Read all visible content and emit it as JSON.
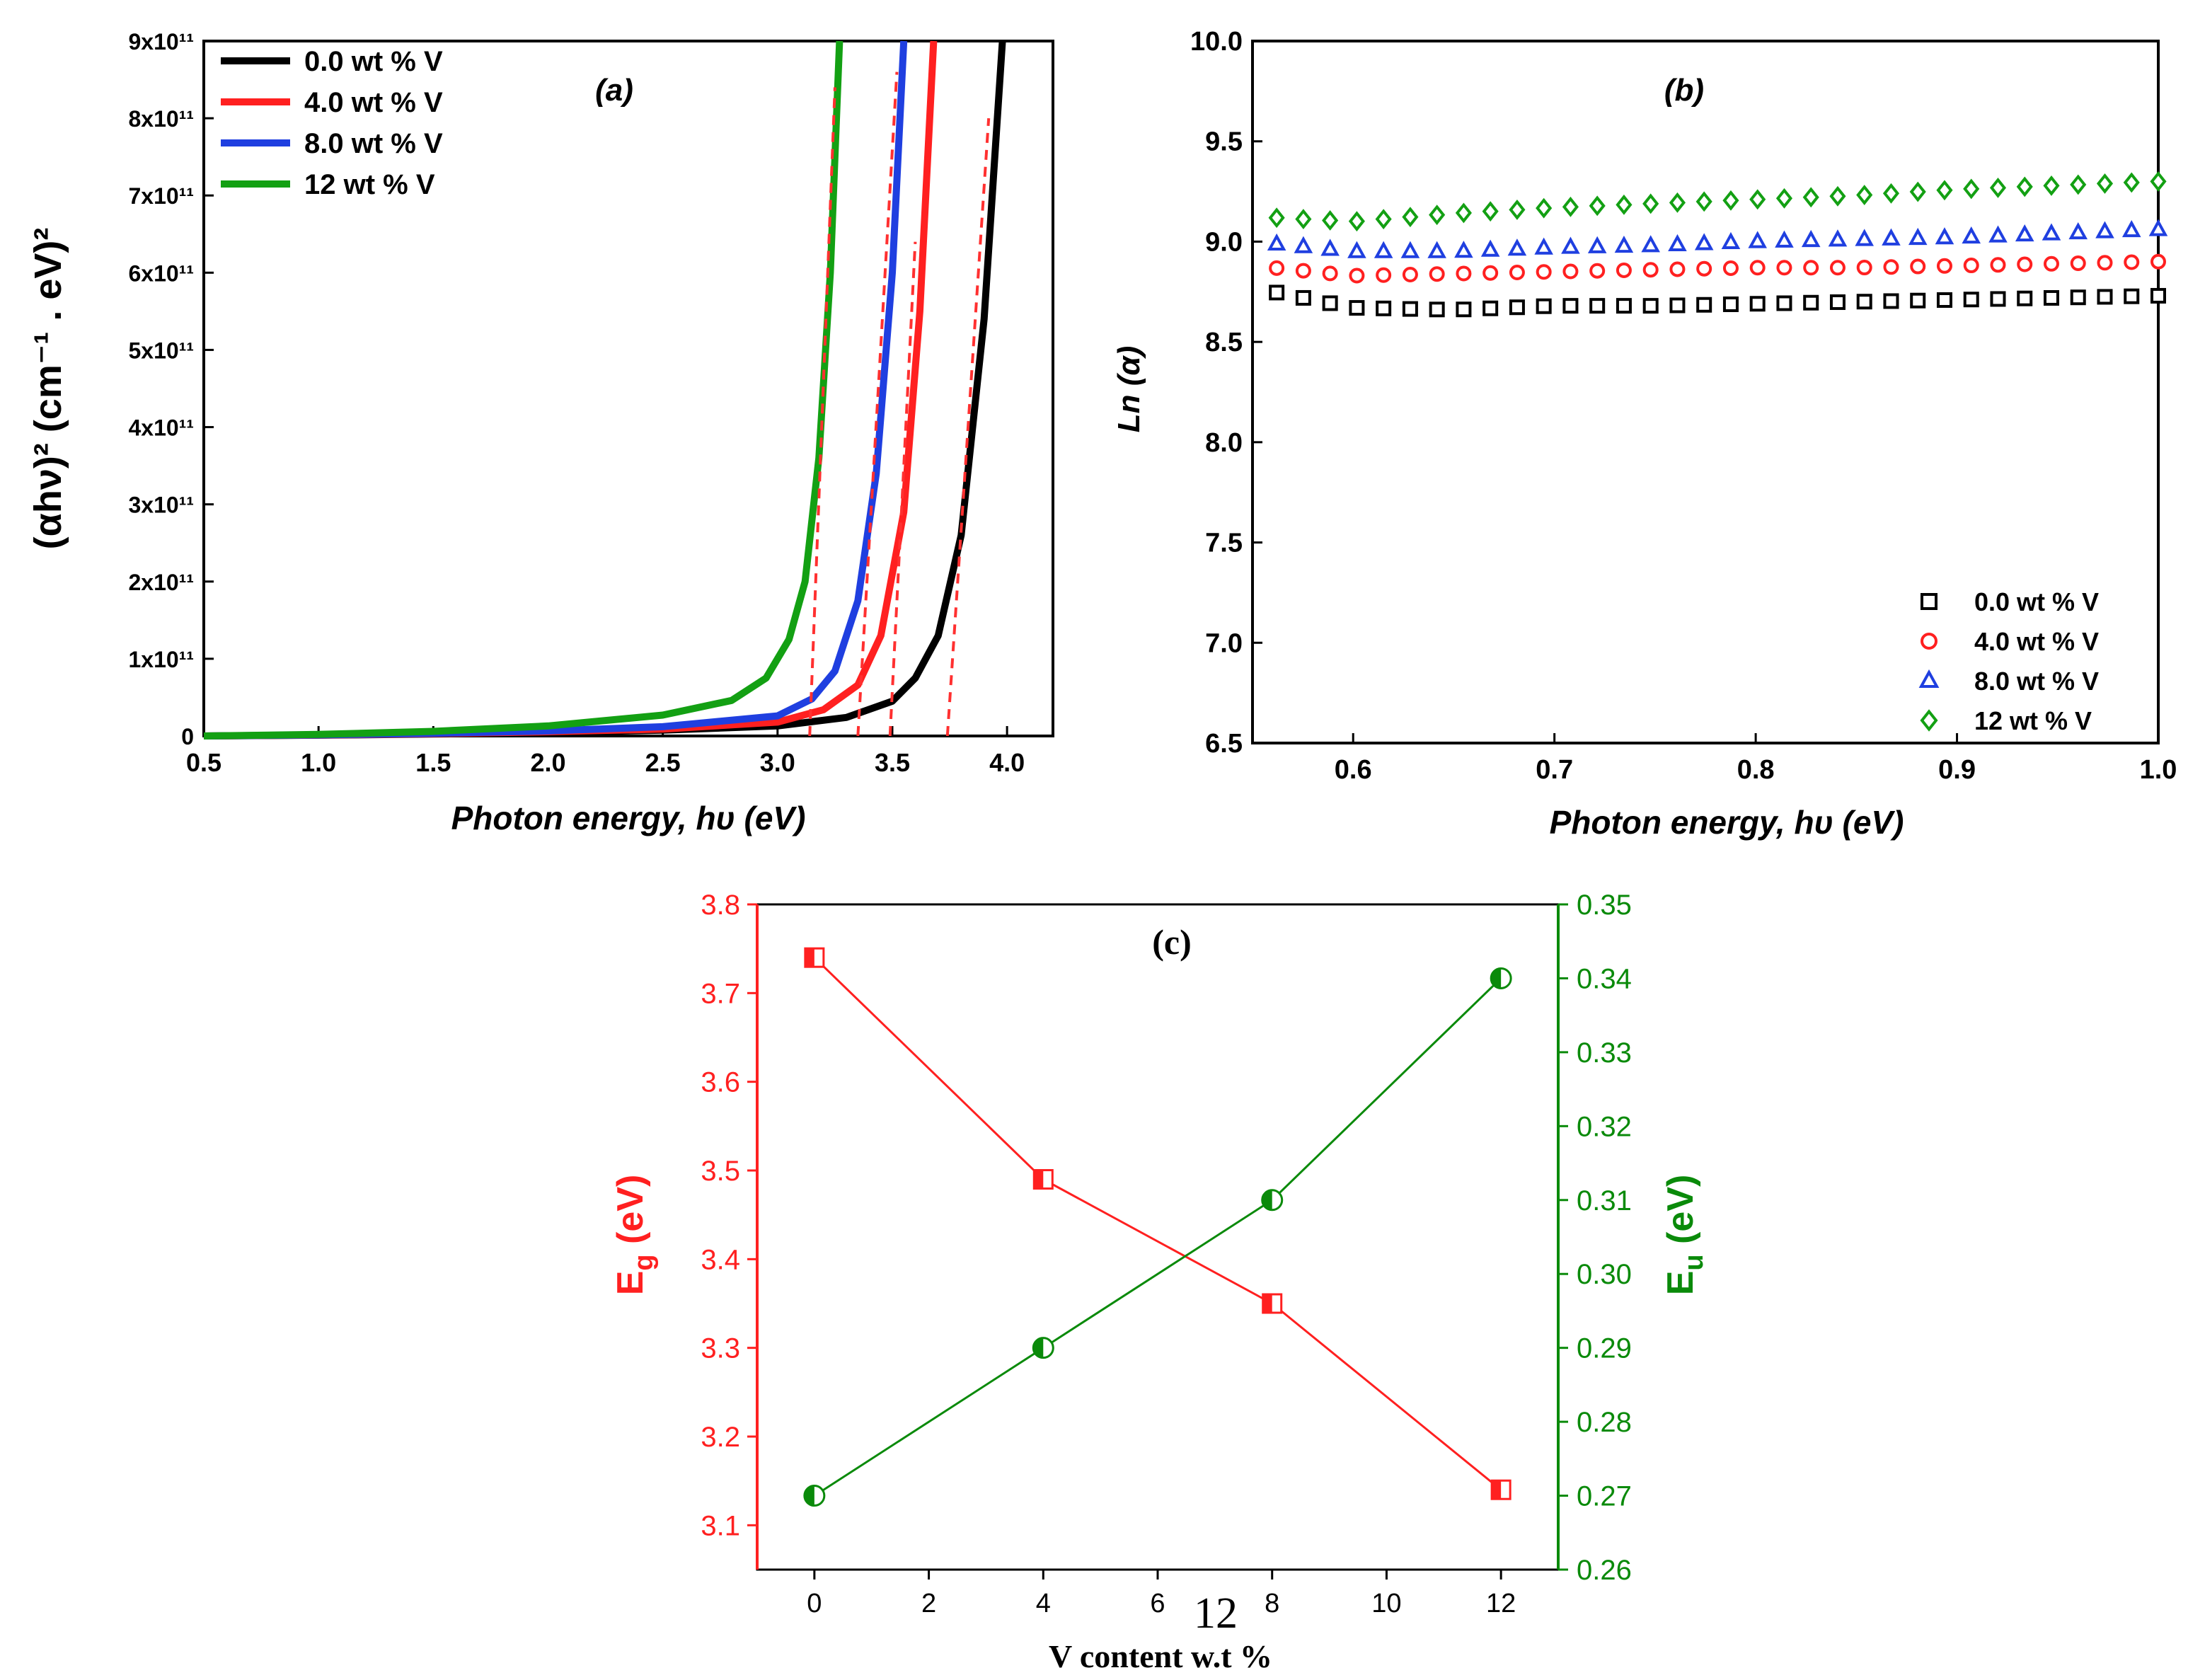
{
  "page_label": "12",
  "colors": {
    "black": "#000000",
    "red": "#ff2020",
    "blue": "#1f3fe0",
    "green": "#13a013",
    "dark_green": "#0a8a0a",
    "fit": "#ff3030"
  },
  "chart_data": [
    {
      "id": "a",
      "type": "line",
      "panel_label": "(a)",
      "xlabel": "Photon energy, hυ (eV)",
      "ylabel": "(αhν)² (cm⁻¹ . eV)²",
      "xlim": [
        0.5,
        4.2
      ],
      "ylim": [
        0,
        900000000000
      ],
      "xticks": [
        "0.5",
        "1.0",
        "1.5",
        "2.0",
        "2.5",
        "3.0",
        "3.5",
        "4.0"
      ],
      "yticks": [
        "0",
        "1x10¹¹",
        "2x10¹¹",
        "3x10¹¹",
        "4x10¹¹",
        "5x10¹¹",
        "6x10¹¹",
        "7x10¹¹",
        "8x10¹¹",
        "9x10¹¹"
      ],
      "legend_position": "top-left",
      "series": [
        {
          "name": "0.0 wt % V",
          "color": "#000000",
          "edge_eV": 3.74,
          "x": [
            0.5,
            1.0,
            1.5,
            2.0,
            2.5,
            3.0,
            3.3,
            3.5,
            3.6,
            3.7,
            3.8,
            3.9,
            3.98
          ],
          "y": [
            0,
            1000000000.0,
            2500000000.0,
            4500000000.0,
            7500000000.0,
            13000000000.0,
            24000000000.0,
            45000000000.0,
            75000000000.0,
            130000000000.0,
            260000000000.0,
            540000000000.0,
            900000000000.0
          ]
        },
        {
          "name": "4.0 wt % V",
          "color": "#ff2020",
          "edge_eV": 3.49,
          "x": [
            0.5,
            1.0,
            1.5,
            2.0,
            2.5,
            3.0,
            3.2,
            3.35,
            3.45,
            3.55,
            3.62,
            3.68
          ],
          "y": [
            0,
            1200000000.0,
            3000000000.0,
            5500000000.0,
            9000000000.0,
            18000000000.0,
            34000000000.0,
            66000000000.0,
            130000000000.0,
            290000000000.0,
            550000000000.0,
            900000000000.0
          ]
        },
        {
          "name": "8.0 wt % V",
          "color": "#1f3fe0",
          "edge_eV": 3.35,
          "x": [
            0.5,
            1.0,
            1.5,
            2.0,
            2.5,
            3.0,
            3.15,
            3.25,
            3.35,
            3.43,
            3.5,
            3.55
          ],
          "y": [
            0,
            1400000000.0,
            3500000000.0,
            6500000000.0,
            12000000000.0,
            26000000000.0,
            48000000000.0,
            84000000000.0,
            175000000000.0,
            340000000000.0,
            600000000000.0,
            900000000000.0
          ]
        },
        {
          "name": "12  wt % V",
          "color": "#13a013",
          "edge_eV": 3.14,
          "x": [
            0.5,
            1.0,
            1.5,
            2.0,
            2.5,
            2.8,
            2.95,
            3.05,
            3.12,
            3.18,
            3.23,
            3.27
          ],
          "y": [
            0,
            2000000000.0,
            6000000000.0,
            13000000000.0,
            27000000000.0,
            46000000000.0,
            75000000000.0,
            125000000000.0,
            200000000000.0,
            360000000000.0,
            600000000000.0,
            900000000000.0
          ]
        }
      ],
      "fit_lines": [
        {
          "series": "0.0 wt % V",
          "x": [
            3.74,
            3.92
          ],
          "y": [
            0,
            800000000000.0
          ]
        },
        {
          "series": "4.0 wt % V",
          "x": [
            3.49,
            3.6
          ],
          "y": [
            0,
            640000000000.0
          ]
        },
        {
          "series": "8.0 wt % V",
          "x": [
            3.35,
            3.52
          ],
          "y": [
            0,
            860000000000.0
          ]
        },
        {
          "series": "12  wt % V",
          "x": [
            3.14,
            3.25
          ],
          "y": [
            0,
            840000000000.0
          ]
        }
      ]
    },
    {
      "id": "b",
      "type": "scatter",
      "panel_label": "(b)",
      "xlabel": "Photon energy, hυ (eV)",
      "ylabel": "Ln (α)",
      "xlim": [
        0.55,
        1.0
      ],
      "ylim": [
        6.5,
        10.0
      ],
      "xticks": [
        "0.6",
        "0.7",
        "0.8",
        "0.9",
        "1.0"
      ],
      "yticks": [
        "6.5",
        "7.0",
        "7.5",
        "8.0",
        "8.5",
        "9.0",
        "9.5",
        "10.0"
      ],
      "legend_position": "bottom-right",
      "series": [
        {
          "name": "0.0 wt % V",
          "marker": "square",
          "color": "#000000",
          "x": [
            0.56,
            0.6,
            0.65,
            0.7,
            0.75,
            0.8,
            0.85,
            0.9,
            0.95,
            1.0
          ],
          "y": [
            8.75,
            8.67,
            8.66,
            8.68,
            8.68,
            8.69,
            8.7,
            8.71,
            8.72,
            8.73
          ]
        },
        {
          "name": "4.0 wt % V",
          "marker": "circle",
          "color": "#ff2020",
          "x": [
            0.56,
            0.6,
            0.65,
            0.7,
            0.75,
            0.8,
            0.85,
            0.9,
            0.95,
            1.0
          ],
          "y": [
            8.87,
            8.83,
            8.84,
            8.85,
            8.86,
            8.87,
            8.87,
            8.88,
            8.89,
            8.9
          ]
        },
        {
          "name": "8.0 wt % V",
          "marker": "triangle",
          "color": "#1f3fe0",
          "x": [
            0.56,
            0.6,
            0.65,
            0.7,
            0.75,
            0.8,
            0.85,
            0.9,
            0.95,
            1.0
          ],
          "y": [
            8.99,
            8.95,
            8.95,
            8.97,
            8.98,
            9.0,
            9.01,
            9.02,
            9.04,
            9.06
          ]
        },
        {
          "name": "12  wt % V",
          "marker": "diamond",
          "color": "#13a013",
          "x": [
            0.56,
            0.6,
            0.65,
            0.7,
            0.75,
            0.8,
            0.85,
            0.9,
            0.95,
            1.0
          ],
          "y": [
            9.12,
            9.1,
            9.14,
            9.17,
            9.19,
            9.21,
            9.23,
            9.26,
            9.28,
            9.3
          ]
        }
      ]
    },
    {
      "id": "c",
      "type": "line",
      "panel_label": "(c)",
      "xlabel": "V  content w.t %",
      "categories_label": "V content",
      "xlim": [
        -1,
        13
      ],
      "xticks": [
        "0",
        "2",
        "4",
        "6",
        "8",
        "10",
        "12"
      ],
      "y_left": {
        "label": "Eg (eV)",
        "label_main": "E",
        "label_sub": "g",
        "label_unit": " (eV)",
        "lim": [
          3.05,
          3.8
        ],
        "ticks": [
          "3.1",
          "3.2",
          "3.3",
          "3.4",
          "3.5",
          "3.6",
          "3.7",
          "3.8"
        ],
        "color": "#ff2020"
      },
      "y_right": {
        "label": "Eu (eV)",
        "label_main": "E",
        "label_sub": "u",
        "label_unit": " (eV)",
        "lim": [
          0.26,
          0.35
        ],
        "ticks": [
          "0.26",
          "0.27",
          "0.28",
          "0.29",
          "0.30",
          "0.31",
          "0.32",
          "0.33",
          "0.34",
          "0.35"
        ],
        "color": "#0a8a0a"
      },
      "series": [
        {
          "name": "Eg",
          "axis": "left",
          "marker": "half-filled square",
          "color": "#ff2020",
          "x": [
            0,
            4,
            8,
            12
          ],
          "y": [
            3.74,
            3.49,
            3.35,
            3.14
          ]
        },
        {
          "name": "Eu",
          "axis": "right",
          "marker": "half-filled circle",
          "color": "#0a8a0a",
          "x": [
            0,
            4,
            8,
            12
          ],
          "y": [
            0.27,
            0.29,
            0.31,
            0.34
          ]
        }
      ]
    }
  ]
}
